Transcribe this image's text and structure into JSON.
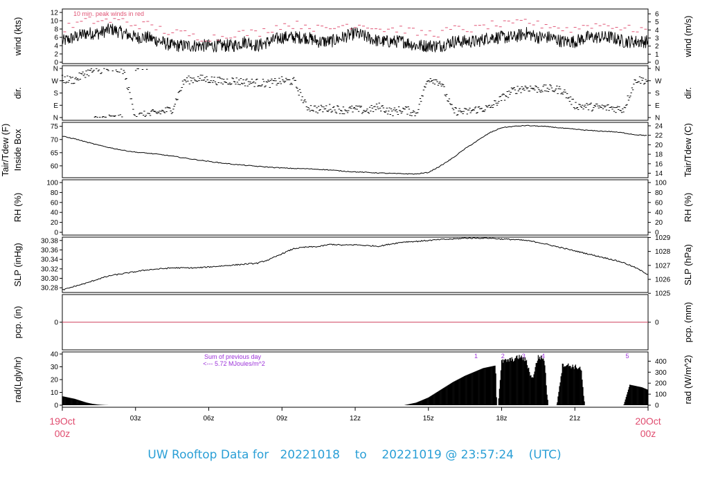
{
  "footer": {
    "title_prefix": "UW Rooftop Data for",
    "start": "20221018",
    "to_word": "to",
    "end": "20221019 @ 23:57:24",
    "tz": "(UTC)"
  },
  "colors": {
    "axis": "#000000",
    "data": "#000000",
    "peak": "#e05575",
    "pcp_line": "#cc3b5a",
    "date_label": "#e04b6e",
    "annot": "#9b30d9",
    "footer": "#2a9fd6"
  },
  "chart_data": [
    {
      "type": "line",
      "panel": "wind",
      "ylabel_left": "wind (kts)",
      "ylabel_right": "wind (m/s)",
      "ylim": [
        0,
        12.5
      ],
      "yticks_left": [
        0,
        2,
        4,
        6,
        8,
        10,
        12
      ],
      "yticks_right": [
        0,
        1,
        2,
        3,
        4,
        5,
        6
      ],
      "annotation": "10 min. peak winds in red",
      "x": [
        0,
        0.5,
        1,
        1.5,
        2,
        2.5,
        3,
        3.5,
        4,
        4.5,
        5,
        5.5,
        6,
        6.5,
        7,
        7.5,
        8,
        8.5,
        9,
        9.5,
        10,
        10.5,
        11,
        11.5,
        12,
        12.5,
        13,
        13.5,
        14,
        14.5,
        15,
        15.5,
        16,
        16.5,
        17,
        17.5,
        18,
        18.5,
        19,
        19.5,
        20,
        20.5,
        21,
        21.5,
        22,
        22.5,
        23,
        23.5,
        24
      ],
      "series": [
        {
          "values": [
            5,
            6,
            7,
            7,
            8,
            7,
            6,
            6,
            5,
            4,
            4,
            4,
            4,
            4,
            4,
            5,
            4,
            5,
            6,
            6,
            6,
            5,
            5,
            6,
            7,
            6,
            5,
            5,
            5,
            4,
            4,
            4,
            5,
            5,
            5,
            6,
            6,
            6,
            7,
            6,
            6,
            5,
            5,
            6,
            6,
            6,
            5,
            5,
            5
          ]
        },
        {
          "values": [
            8,
            9,
            10,
            10,
            10,
            10,
            9,
            9,
            8,
            7,
            7,
            6,
            6,
            6,
            7,
            7,
            7,
            8,
            9,
            9,
            9,
            8,
            8,
            9,
            9,
            9,
            8,
            8,
            8,
            7,
            7,
            7,
            8,
            8,
            8,
            9,
            9,
            9,
            10,
            9,
            9,
            8,
            8,
            9,
            9,
            9,
            8,
            8,
            8
          ]
        }
      ]
    },
    {
      "type": "scatter",
      "panel": "dir",
      "ylabel_left": "dir.",
      "yticks_left": [
        "N",
        "E",
        "S",
        "W",
        "N"
      ],
      "yticks_right": [
        "N",
        "E",
        "S",
        "W",
        "N"
      ],
      "ylim": [
        0,
        360
      ],
      "x": [
        0,
        0.5,
        1,
        1.5,
        2,
        2.5,
        3,
        3.5,
        4,
        4.5,
        5,
        5.5,
        6,
        6.5,
        7,
        7.5,
        8,
        8.5,
        9,
        9.5,
        10,
        10.5,
        11,
        11.5,
        12,
        12.5,
        13,
        13.5,
        14,
        14.5,
        15,
        15.5,
        16,
        16.5,
        17,
        17.5,
        18,
        18.5,
        19,
        19.5,
        20,
        20.5,
        21,
        21.5,
        22,
        22.5,
        23,
        23.5,
        24
      ],
      "values": [
        280,
        275,
        330,
        350,
        355,
        350,
        10,
        20,
        40,
        60,
        270,
        285,
        280,
        265,
        270,
        260,
        255,
        250,
        270,
        265,
        80,
        60,
        70,
        55,
        60,
        50,
        80,
        40,
        60,
        30,
        290,
        260,
        50,
        40,
        60,
        70,
        140,
        200,
        220,
        210,
        210,
        200,
        90,
        80,
        75,
        70,
        60,
        280,
        270
      ]
    },
    {
      "type": "line",
      "panel": "temp",
      "ylabel_left": "Tair/Tdew (F)",
      "ylabel_left2": "Inside Box",
      "ylabel_right": "Tair/Tdew (C)",
      "ylim": [
        55.5,
        76.5
      ],
      "yticks_left": [
        60,
        65,
        70,
        75
      ],
      "yticks_right": [
        14,
        16,
        18,
        20,
        22,
        24
      ],
      "x": [
        0,
        0.5,
        1,
        1.5,
        2,
        2.5,
        3,
        3.5,
        4,
        4.5,
        5,
        5.5,
        6,
        6.5,
        7,
        7.5,
        8,
        8.5,
        9,
        9.5,
        10,
        10.5,
        11,
        11.5,
        12,
        12.5,
        13,
        13.5,
        14,
        14.5,
        15,
        15.5,
        16,
        16.5,
        17,
        17.5,
        18,
        18.5,
        19,
        19.5,
        20,
        20.5,
        21,
        21.5,
        22,
        22.5,
        23,
        23.5,
        24
      ],
      "values": [
        71.2,
        70.3,
        69.0,
        67.8,
        66.8,
        65.9,
        65.2,
        64.8,
        64.3,
        63.7,
        63.0,
        62.3,
        61.7,
        61.1,
        60.6,
        60.2,
        59.8,
        59.5,
        59.2,
        59.0,
        58.9,
        58.7,
        58.4,
        58.0,
        57.7,
        57.5,
        57.3,
        57.1,
        57.0,
        56.9,
        57.5,
        60.0,
        63.0,
        66.5,
        69.5,
        72.5,
        74.5,
        75.0,
        75.3,
        75.1,
        74.8,
        74.3,
        73.9,
        73.5,
        73.2,
        73.0,
        72.5,
        71.8,
        71.5
      ]
    },
    {
      "type": "line",
      "panel": "rh",
      "ylabel_left": "RH (%)",
      "ylabel_right": "RH (%)",
      "ylim": [
        0,
        100
      ],
      "yticks_left": [
        0,
        20,
        40,
        60,
        80,
        100
      ],
      "yticks_right": [
        0,
        20,
        40,
        60,
        80,
        100
      ],
      "values": []
    },
    {
      "type": "line",
      "panel": "slp",
      "ylabel_left": "SLP (inHg)",
      "ylabel_right": "SLP (hPa)",
      "ylim": [
        30.27,
        30.387
      ],
      "yticks_left": [
        30.28,
        30.3,
        30.32,
        30.34,
        30.36,
        30.38
      ],
      "yticks_right": [
        1025,
        1026,
        1027,
        1028,
        1029
      ],
      "x": [
        0,
        0.5,
        1,
        1.5,
        2,
        2.5,
        3,
        3.5,
        4,
        4.5,
        5,
        5.5,
        6,
        6.5,
        7,
        7.5,
        8,
        8.5,
        9,
        9.5,
        10,
        10.5,
        11,
        11.5,
        12,
        12.5,
        13,
        13.5,
        14,
        14.5,
        15,
        15.5,
        16,
        16.5,
        17,
        17.5,
        18,
        18.5,
        19,
        19.5,
        20,
        20.5,
        21,
        21.5,
        22,
        22.5,
        23,
        23.5,
        24
      ],
      "values": [
        30.275,
        30.283,
        30.29,
        30.299,
        30.306,
        30.31,
        30.314,
        30.318,
        30.32,
        30.322,
        30.322,
        30.322,
        30.324,
        30.326,
        30.328,
        30.33,
        30.332,
        30.34,
        30.352,
        30.363,
        30.366,
        30.367,
        30.372,
        30.37,
        30.371,
        30.369,
        30.368,
        30.373,
        30.377,
        30.378,
        30.38,
        30.382,
        30.383,
        30.385,
        30.385,
        30.385,
        30.383,
        30.382,
        30.38,
        30.376,
        30.37,
        30.364,
        30.358,
        30.352,
        30.346,
        30.34,
        30.333,
        30.322,
        30.308
      ]
    },
    {
      "type": "line",
      "panel": "pcp",
      "ylabel_left": "pcp. (in)",
      "ylabel_right": "pcp. (mm)",
      "ylim": [
        -1,
        1
      ],
      "yticks_left": [
        0
      ],
      "yticks_right": [
        0
      ],
      "values": [
        0,
        0
      ]
    },
    {
      "type": "area",
      "panel": "rad",
      "ylabel_left": "rad(Lgly/hr)",
      "ylabel_right": "rad (W/m^2)",
      "ylim": [
        0,
        40
      ],
      "yticks_left": [
        0,
        10,
        20,
        30,
        40
      ],
      "yticks_right": [
        0,
        100,
        200,
        300,
        400
      ],
      "annotation_lines": [
        "Sum of previous day",
        "<--- 5.72 MJoules/m^2"
      ],
      "markers": [
        "1",
        "2",
        "3",
        "4",
        "5"
      ],
      "x": [
        0,
        0.25,
        0.5,
        0.75,
        1,
        1.25,
        1.5,
        1.75,
        2,
        14,
        14.5,
        15,
        15.5,
        16,
        16.5,
        17,
        17.25,
        17.5,
        17.75,
        17.8,
        17.85,
        18,
        18.25,
        18.5,
        18.75,
        19,
        19.25,
        19.5,
        19.75,
        19.9,
        20,
        20.25,
        20.5,
        20.75,
        21,
        21.25,
        21.4,
        21.5,
        22,
        22.5,
        23,
        23.25,
        23.5,
        23.75,
        24
      ],
      "values": [
        7,
        6,
        5,
        3.5,
        2,
        1,
        0.4,
        0.1,
        0,
        0,
        2,
        6,
        12,
        18,
        23,
        27,
        29,
        30,
        31,
        0,
        0,
        34,
        35,
        36,
        38,
        35,
        20,
        38,
        36,
        0,
        0,
        0,
        32,
        31,
        30,
        29,
        0,
        0,
        0,
        0,
        0,
        16,
        15,
        14,
        12
      ]
    },
    {
      "type": "line",
      "panel": "time-axis",
      "xticks": [
        "03z",
        "06z",
        "09z",
        "12z",
        "15z",
        "18z",
        "21z"
      ],
      "xstart_label": [
        "19Oct",
        "00z"
      ],
      "xend_label": [
        "20Oct",
        "00z"
      ],
      "xlim": [
        0,
        24
      ]
    }
  ]
}
